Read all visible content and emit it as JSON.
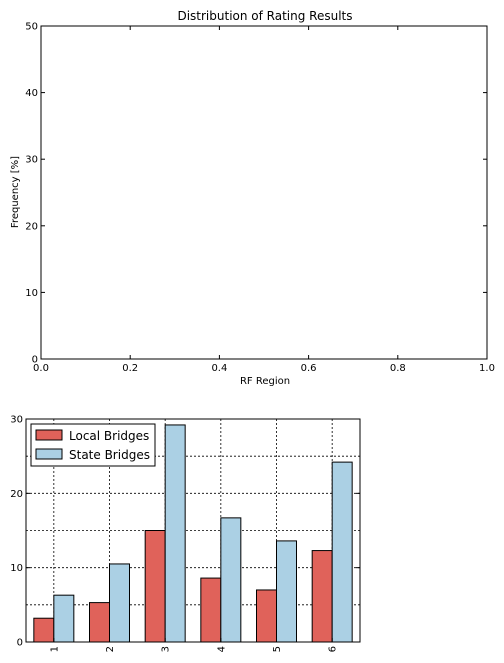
{
  "chart_data": [
    {
      "type": "bar",
      "title": "Distribution of Rating Results",
      "xlabel": "RF Region",
      "ylabel": "Frequency [%]",
      "xlim": [
        0.0,
        1.0
      ],
      "ylim": [
        0,
        50
      ],
      "x_ticks": [
        "0.0",
        "0.2",
        "0.4",
        "0.6",
        "0.8",
        "1.0"
      ],
      "y_ticks": [
        "0",
        "10",
        "20",
        "30",
        "40",
        "50"
      ],
      "categories": [],
      "series": [],
      "grid": false
    },
    {
      "type": "bar",
      "title": "",
      "xlabel": "",
      "ylabel": "",
      "ylim": [
        0,
        30
      ],
      "y_ticks": [
        "0",
        "10",
        "20",
        "30"
      ],
      "categories": [
        "1",
        "2",
        "3",
        "4",
        "5",
        "6"
      ],
      "series": [
        {
          "name": "Local Bridges",
          "color": "#e0625a",
          "values": [
            3.2,
            5.3,
            15.0,
            8.6,
            7.0,
            12.3
          ]
        },
        {
          "name": "State Bridges",
          "color": "#abd0e4",
          "values": [
            6.3,
            10.5,
            29.2,
            16.7,
            13.6,
            24.2
          ]
        }
      ],
      "grid": true,
      "legend": "top-left"
    }
  ]
}
